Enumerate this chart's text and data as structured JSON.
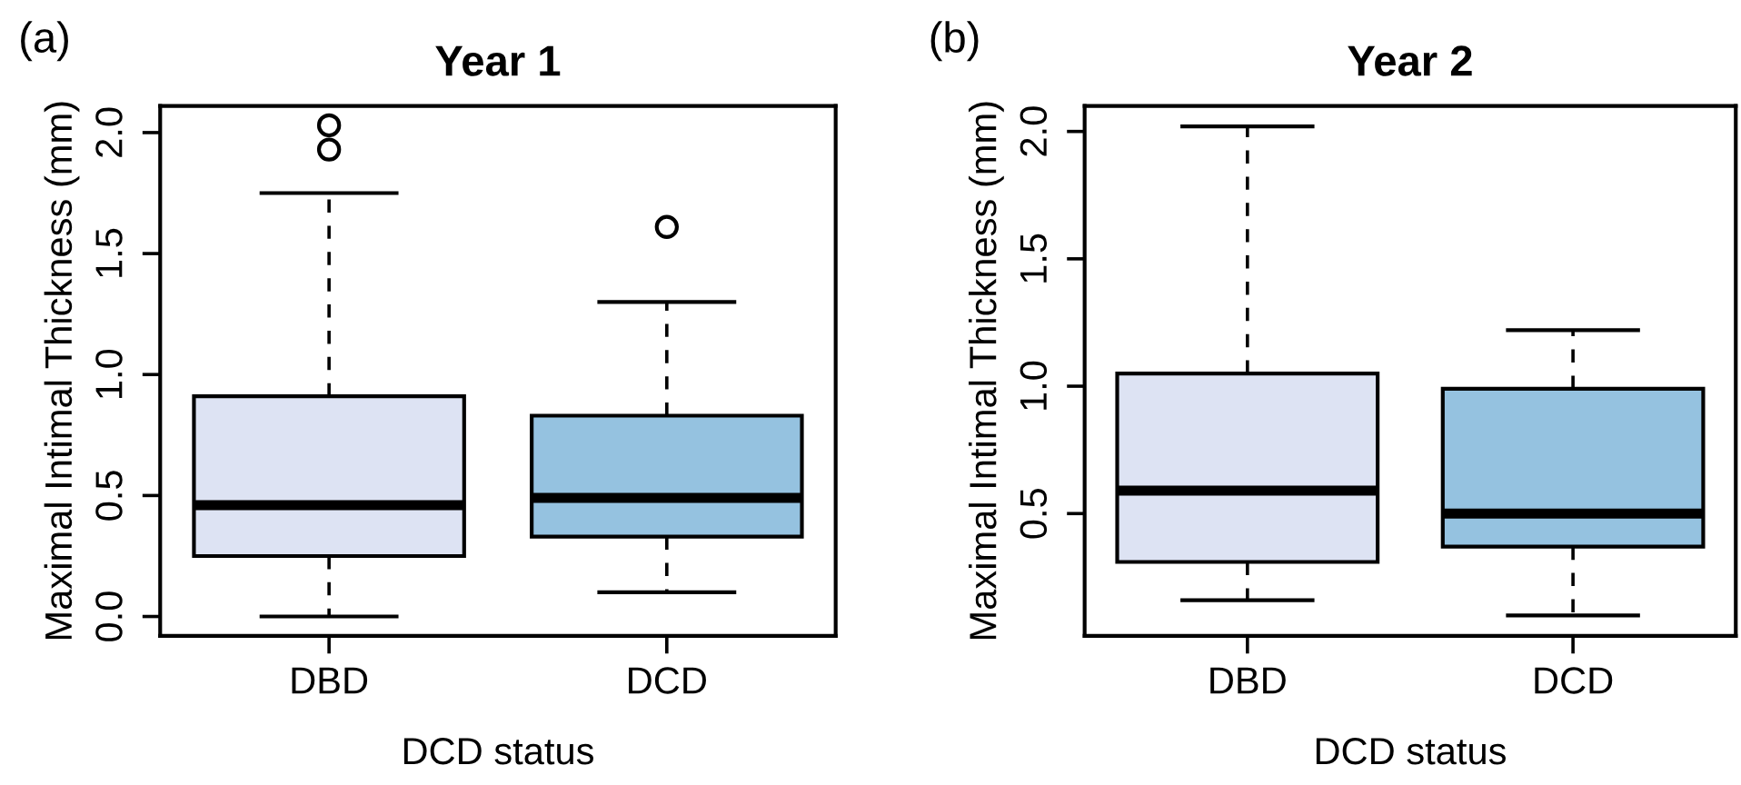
{
  "chart_data": [
    {
      "type": "box",
      "title": "Year 1",
      "annotations": [
        "(a)"
      ],
      "xlabel": "DCD status",
      "ylabel": "Maximal Intimal Thickness (mm)",
      "categories": [
        "DBD",
        "DCD"
      ],
      "colors": [
        "#dde3f3",
        "#95c2e0"
      ],
      "boxes": [
        {
          "low": 0.0,
          "q1": 0.25,
          "median": 0.46,
          "q3": 0.91,
          "high": 1.75,
          "outliers": [
            1.93,
            2.03
          ]
        },
        {
          "low": 0.1,
          "q1": 0.33,
          "median": 0.49,
          "q3": 0.83,
          "high": 1.3,
          "outliers": [
            1.61
          ]
        }
      ],
      "ylim": [
        -0.08,
        2.11
      ],
      "yticks": [
        {
          "value": 0,
          "label": "0.0"
        },
        {
          "value": 0.5,
          "label": "0.5"
        },
        {
          "value": 1,
          "label": "1.0"
        },
        {
          "value": 1.5,
          "label": "1.5"
        },
        {
          "value": 2,
          "label": "2.0"
        }
      ],
      "grid": false
    },
    {
      "type": "box",
      "title": "Year 2",
      "annotations": [
        "(b)"
      ],
      "xlabel": "DCD status",
      "ylabel": "Maximal Intimal Thickness (mm)",
      "categories": [
        "DBD",
        "DCD"
      ],
      "colors": [
        "#dde3f3",
        "#95c2e0"
      ],
      "boxes": [
        {
          "low": 0.16,
          "q1": 0.31,
          "median": 0.59,
          "q3": 1.05,
          "high": 2.02
        },
        {
          "low": 0.1,
          "q1": 0.37,
          "median": 0.5,
          "q3": 0.99,
          "high": 1.22
        }
      ],
      "ylim": [
        0.02,
        2.1
      ],
      "yticks": [
        {
          "value": 0.5,
          "label": "0.5"
        },
        {
          "value": 1,
          "label": "1.0"
        },
        {
          "value": 1.5,
          "label": "1.5"
        },
        {
          "value": 2,
          "label": "2.0"
        }
      ],
      "grid": false
    }
  ]
}
